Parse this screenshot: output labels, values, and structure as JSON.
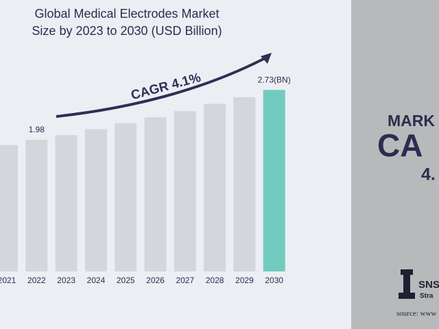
{
  "chart_data": {
    "type": "bar",
    "title": [
      "Global Medical Electrodes Market",
      "Size by 2023 to 2030 (USD Billion)"
    ],
    "categories": [
      "2021",
      "2022",
      "2023",
      "2024",
      "2025",
      "2026",
      "2027",
      "2028",
      "2029",
      "2030"
    ],
    "values": [
      1.9,
      1.98,
      2.05,
      2.14,
      2.23,
      2.32,
      2.41,
      2.52,
      2.62,
      2.73
    ],
    "value_labels": [
      null,
      "1.98",
      null,
      null,
      null,
      null,
      null,
      null,
      null,
      "2.73(BN)"
    ],
    "colors": [
      "#d3d6da",
      "#d3d6da",
      "#d3d6da",
      "#d3d6da",
      "#d3d6da",
      "#d3d6da",
      "#d3d6da",
      "#d3d6da",
      "#d3d6da",
      "#72cbbf"
    ],
    "annotation": "CAGR 4.1%"
  },
  "side_panel": {
    "lines": [
      "MARK",
      "CA",
      "4."
    ],
    "logo": "SNS",
    "logo_sub": "Stra",
    "source": "source: www"
  }
}
